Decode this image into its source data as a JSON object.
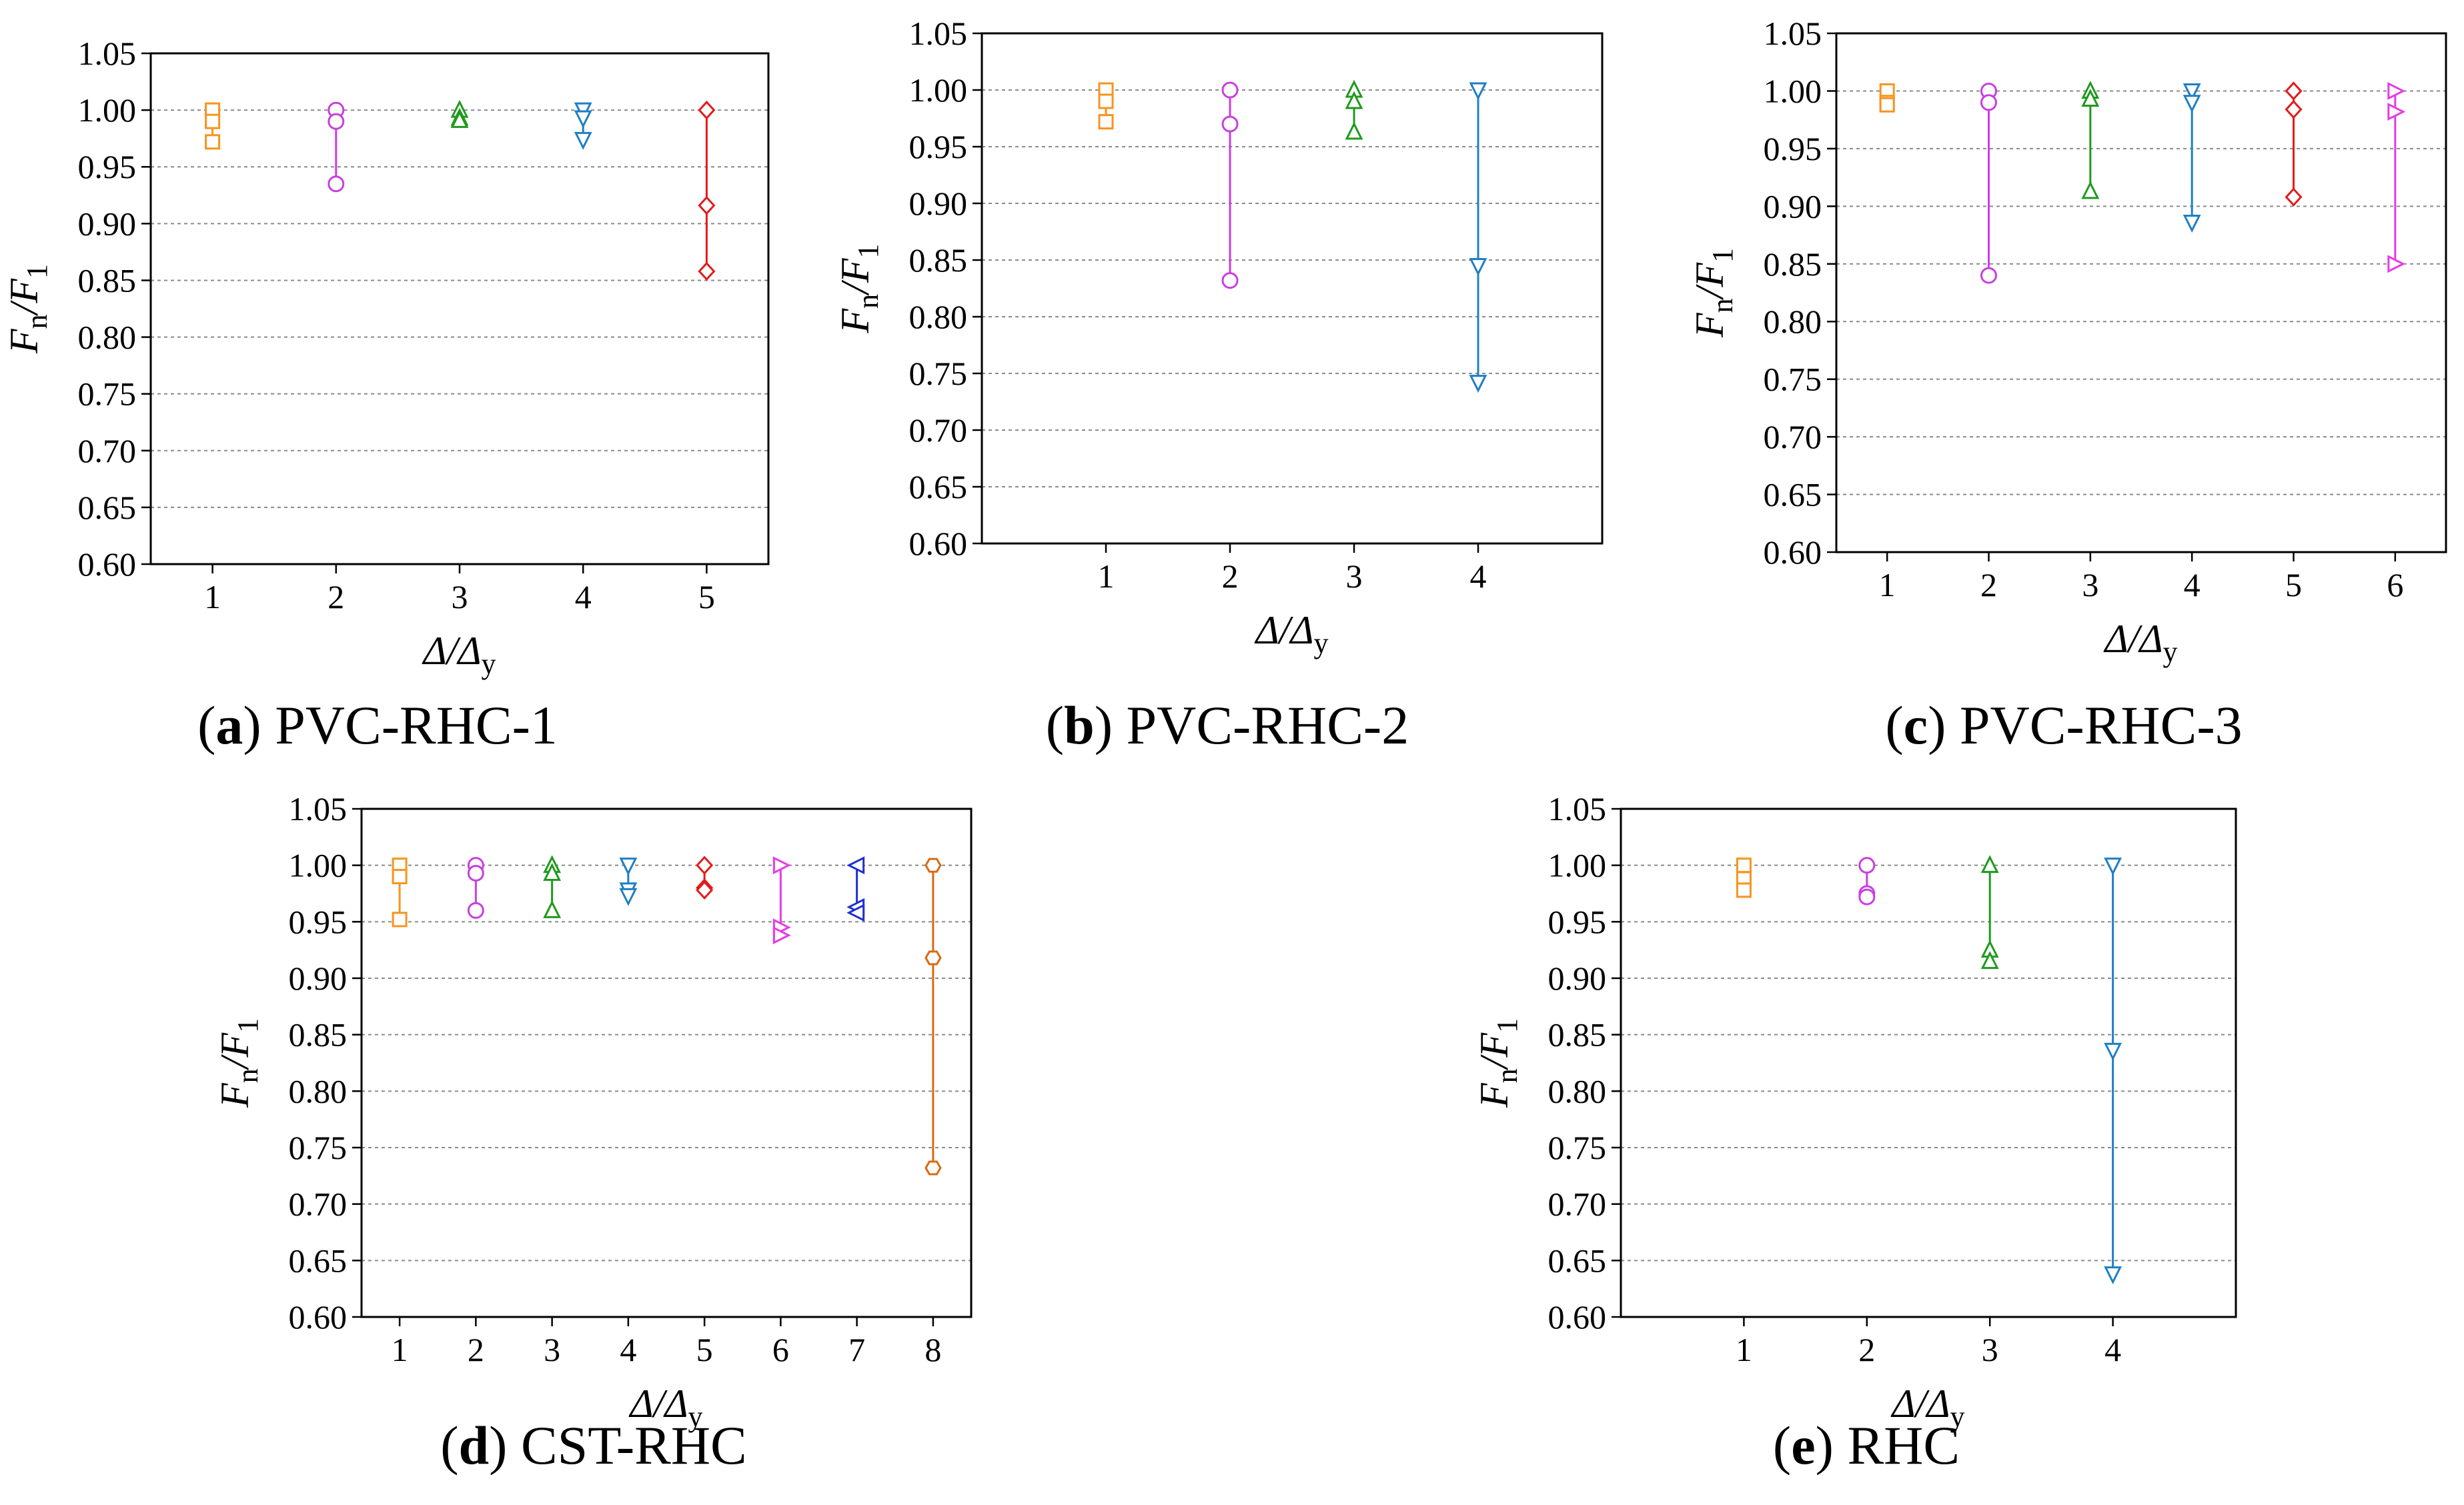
{
  "figure": {
    "panels": [
      "a",
      "b",
      "c",
      "d",
      "e"
    ]
  },
  "chart_data": [
    {
      "id": "a",
      "type": "scatter",
      "caption": {
        "letter": "a",
        "title": "PVC-RHC-1"
      },
      "xlabel": {
        "main": "Δ/Δ",
        "sub": "y"
      },
      "ylabel": {
        "main": "F",
        "sub": "n",
        "sep": "/F",
        "sub2": "1"
      },
      "ylim": [
        0.6,
        1.05
      ],
      "yticks": [
        "0.60",
        "0.65",
        "0.70",
        "0.75",
        "0.80",
        "0.85",
        "0.90",
        "0.95",
        "1.00",
        "1.05"
      ],
      "x": [
        1,
        2,
        3,
        4,
        5
      ],
      "xlim": [
        0.5,
        5.5
      ],
      "series": [
        {
          "x": 1,
          "marker": "square",
          "color": "#f7941d",
          "values": [
            1.0,
            0.99,
            0.972
          ]
        },
        {
          "x": 2,
          "marker": "circle",
          "color": "#c83fe0",
          "values": [
            1.0,
            0.99,
            0.935
          ]
        },
        {
          "x": 3,
          "marker": "triangle-up",
          "color": "#1e9a1e",
          "values": [
            1.0,
            0.993,
            0.991
          ]
        },
        {
          "x": 4,
          "marker": "triangle-down",
          "color": "#1f7fc4",
          "values": [
            1.0,
            0.993,
            0.974
          ]
        },
        {
          "x": 5,
          "marker": "diamond",
          "color": "#e41a1a",
          "values": [
            1.0,
            0.916,
            0.858
          ]
        }
      ]
    },
    {
      "id": "b",
      "type": "scatter",
      "caption": {
        "letter": "b",
        "title": "PVC-RHC-2"
      },
      "xlabel": {
        "main": "Δ/Δ",
        "sub": "y"
      },
      "ylabel": {
        "main": "F",
        "sub": "n",
        "sep": "/F",
        "sub2": "1"
      },
      "ylim": [
        0.6,
        1.05
      ],
      "yticks": [
        "0.60",
        "0.65",
        "0.70",
        "0.75",
        "0.80",
        "0.85",
        "0.90",
        "0.95",
        "1.00",
        "1.05"
      ],
      "x": [
        1,
        2,
        3,
        4
      ],
      "xlim": [
        0.0,
        5.0
      ],
      "series": [
        {
          "x": 1,
          "marker": "square",
          "color": "#f7941d",
          "values": [
            1.0,
            0.99,
            0.972
          ]
        },
        {
          "x": 2,
          "marker": "circle",
          "color": "#c83fe0",
          "values": [
            1.0,
            0.97,
            0.832
          ]
        },
        {
          "x": 3,
          "marker": "triangle-up",
          "color": "#1e9a1e",
          "values": [
            1.0,
            0.99,
            0.963
          ]
        },
        {
          "x": 4,
          "marker": "triangle-down",
          "color": "#1f7fc4",
          "values": [
            1.0,
            0.845,
            0.742
          ]
        }
      ]
    },
    {
      "id": "c",
      "type": "scatter",
      "caption": {
        "letter": "c",
        "title": "PVC-RHC-3"
      },
      "xlabel": {
        "main": "Δ/Δ",
        "sub": "y"
      },
      "ylabel": {
        "main": "F",
        "sub": "n",
        "sep": "/F",
        "sub2": "1"
      },
      "ylim": [
        0.6,
        1.05
      ],
      "yticks": [
        "0.60",
        "0.65",
        "0.70",
        "0.75",
        "0.80",
        "0.85",
        "0.90",
        "0.95",
        "1.00",
        "1.05"
      ],
      "x": [
        1,
        2,
        3,
        4,
        5,
        6
      ],
      "xlim": [
        0.5,
        6.5
      ],
      "series": [
        {
          "x": 1,
          "marker": "square",
          "color": "#f7941d",
          "values": [
            1.0,
            0.99,
            0.988
          ]
        },
        {
          "x": 2,
          "marker": "circle",
          "color": "#c83fe0",
          "values": [
            1.0,
            0.99,
            0.84
          ]
        },
        {
          "x": 3,
          "marker": "triangle-up",
          "color": "#1e9a1e",
          "values": [
            1.0,
            0.993,
            0.913
          ]
        },
        {
          "x": 4,
          "marker": "triangle-down",
          "color": "#1f7fc4",
          "values": [
            1.0,
            0.99,
            0.886
          ]
        },
        {
          "x": 5,
          "marker": "diamond",
          "color": "#e41a1a",
          "values": [
            1.0,
            0.984,
            0.908
          ]
        },
        {
          "x": 6,
          "marker": "triangle-right",
          "color": "#e63be6",
          "values": [
            1.0,
            0.982,
            0.85
          ]
        }
      ]
    },
    {
      "id": "d",
      "type": "scatter",
      "caption": {
        "letter": "d",
        "title": "CST-RHC"
      },
      "xlabel": {
        "main": "Δ/Δ",
        "sub": "y"
      },
      "ylabel": {
        "main": "F",
        "sub": "n",
        "sep": "/F",
        "sub2": "1"
      },
      "ylim": [
        0.6,
        1.05
      ],
      "yticks": [
        "0.60",
        "0.65",
        "0.70",
        "0.75",
        "0.80",
        "0.85",
        "0.90",
        "0.95",
        "1.00",
        "1.05"
      ],
      "x": [
        1,
        2,
        3,
        4,
        5,
        6,
        7,
        8
      ],
      "xlim": [
        0.5,
        8.5
      ],
      "series": [
        {
          "x": 1,
          "marker": "square",
          "color": "#f7941d",
          "values": [
            1.0,
            0.99,
            0.952
          ]
        },
        {
          "x": 2,
          "marker": "circle",
          "color": "#c83fe0",
          "values": [
            1.0,
            0.993,
            0.96
          ]
        },
        {
          "x": 3,
          "marker": "triangle-up",
          "color": "#1e9a1e",
          "values": [
            1.0,
            0.993,
            0.96
          ]
        },
        {
          "x": 4,
          "marker": "triangle-down",
          "color": "#1f7fc4",
          "values": [
            1.0,
            0.978,
            0.973
          ]
        },
        {
          "x": 5,
          "marker": "diamond",
          "color": "#e41a1a",
          "values": [
            1.0,
            0.98,
            0.978
          ]
        },
        {
          "x": 6,
          "marker": "triangle-right",
          "color": "#e63be6",
          "values": [
            1.0,
            0.945,
            0.938
          ]
        },
        {
          "x": 7,
          "marker": "triangle-left",
          "color": "#1f2fd1",
          "values": [
            1.0,
            0.963,
            0.958
          ]
        },
        {
          "x": 8,
          "marker": "hexagon",
          "color": "#d86a12",
          "values": [
            1.0,
            0.918,
            0.732
          ]
        }
      ]
    },
    {
      "id": "e",
      "type": "scatter",
      "caption": {
        "letter": "e",
        "title": "RHC"
      },
      "xlabel": {
        "main": "Δ/Δ",
        "sub": "y"
      },
      "ylabel": {
        "main": "F",
        "sub": "n",
        "sep": "/F",
        "sub2": "1"
      },
      "ylim": [
        0.6,
        1.05
      ],
      "yticks": [
        "0.60",
        "0.65",
        "0.70",
        "0.75",
        "0.80",
        "0.85",
        "0.90",
        "0.95",
        "1.00",
        "1.05"
      ],
      "x": [
        1,
        2,
        3,
        4
      ],
      "xlim": [
        0.0,
        5.0
      ],
      "series": [
        {
          "x": 1,
          "marker": "square",
          "color": "#f7941d",
          "values": [
            1.0,
            0.988,
            0.978
          ]
        },
        {
          "x": 2,
          "marker": "circle",
          "color": "#c83fe0",
          "values": [
            1.0,
            0.975,
            0.972
          ]
        },
        {
          "x": 3,
          "marker": "triangle-up",
          "color": "#1e9a1e",
          "values": [
            1.0,
            0.925,
            0.915
          ]
        },
        {
          "x": 4,
          "marker": "triangle-down",
          "color": "#1f7fc4",
          "values": [
            1.0,
            0.836,
            0.638
          ]
        }
      ]
    }
  ]
}
